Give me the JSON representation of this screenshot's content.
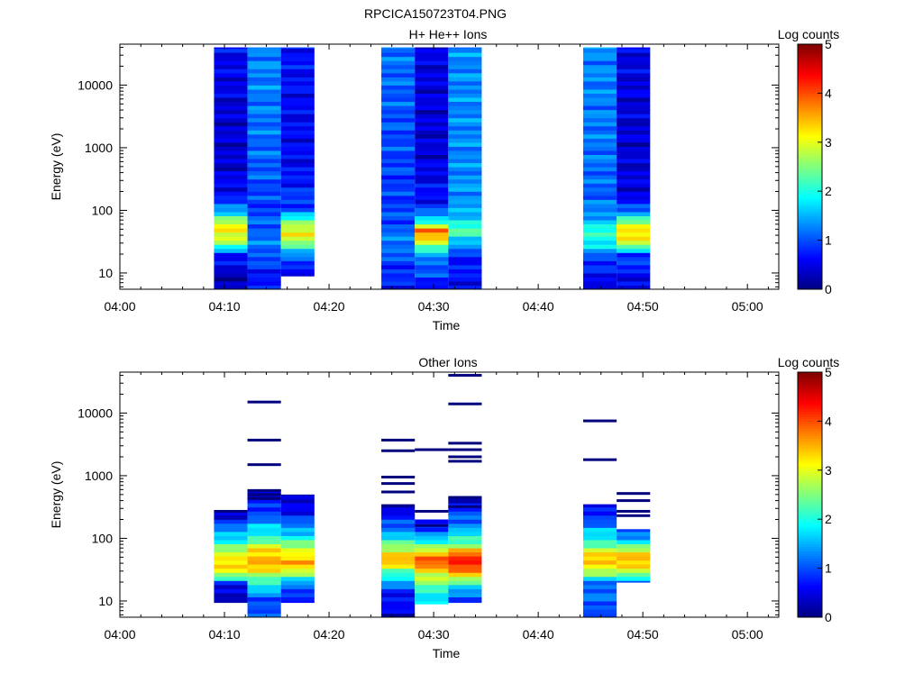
{
  "figure_title": "RPCICA150723T04.PNG",
  "colors": {
    "jet": [
      "#00007f",
      "#0000ff",
      "#007fff",
      "#00ffff",
      "#7fff7f",
      "#ffff00",
      "#ff7f00",
      "#ff0000",
      "#7f0000"
    ]
  },
  "chart_data": [
    {
      "type": "heatmap",
      "title": "H+ He++ Ions",
      "xlabel": "Time",
      "ylabel": "Energy (eV)",
      "x_ticks": [
        "04:00",
        "04:10",
        "04:20",
        "04:30",
        "04:40",
        "04:50",
        "05:00"
      ],
      "x_range_minutes": [
        0,
        63
      ],
      "y_scale": "log",
      "y_range": [
        5.5,
        45000
      ],
      "y_ticks": [
        "10",
        "100",
        "1000",
        "10000"
      ],
      "colorbar": {
        "label": "Log counts",
        "range": [
          0,
          5
        ],
        "ticks": [
          "0",
          "1",
          "2",
          "3",
          "4",
          "5"
        ]
      },
      "columns": [
        {
          "start": 9.0,
          "end": 12.2,
          "e_min": 5.5,
          "e_max": 40000,
          "profile": [
            [
              5.5,
              0.2
            ],
            [
              10,
              0.3
            ],
            [
              20,
              0.8
            ],
            [
              30,
              2.5
            ],
            [
              45,
              3.3
            ],
            [
              60,
              3.0
            ],
            [
              90,
              1.8
            ],
            [
              150,
              0.7
            ],
            [
              500,
              0.4
            ],
            [
              3000,
              0.4
            ],
            [
              40000,
              0.6
            ]
          ]
        },
        {
          "start": 12.2,
          "end": 15.4,
          "e_min": 5.5,
          "e_max": 40000,
          "profile": [
            [
              5.5,
              0.6
            ],
            [
              12,
              0.8
            ],
            [
              25,
              1.2
            ],
            [
              60,
              1.1
            ],
            [
              120,
              0.9
            ],
            [
              500,
              1.1
            ],
            [
              3000,
              1.2
            ],
            [
              40000,
              1.3
            ]
          ]
        },
        {
          "start": 15.4,
          "end": 18.6,
          "e_min": 9,
          "e_max": 40000,
          "profile": [
            [
              9,
              0.6
            ],
            [
              18,
              1.0
            ],
            [
              28,
              2.4
            ],
            [
              45,
              3.2
            ],
            [
              60,
              2.8
            ],
            [
              100,
              1.0
            ],
            [
              500,
              0.6
            ],
            [
              5000,
              0.6
            ],
            [
              40000,
              0.7
            ]
          ]
        },
        {
          "start": 25.0,
          "end": 28.2,
          "e_min": 5.5,
          "e_max": 40000,
          "profile": [
            [
              5.5,
              0.7
            ],
            [
              15,
              0.9
            ],
            [
              30,
              1.3
            ],
            [
              60,
              1.0
            ],
            [
              200,
              0.9
            ],
            [
              2000,
              1.0
            ],
            [
              40000,
              1.2
            ]
          ]
        },
        {
          "start": 28.2,
          "end": 31.4,
          "e_min": 5.5,
          "e_max": 40000,
          "profile": [
            [
              5.5,
              0.6
            ],
            [
              20,
              1.4
            ],
            [
              35,
              3.4
            ],
            [
              50,
              3.7
            ],
            [
              70,
              1.8
            ],
            [
              120,
              0.7
            ],
            [
              1000,
              0.4
            ],
            [
              40000,
              0.5
            ]
          ]
        },
        {
          "start": 31.4,
          "end": 34.6,
          "e_min": 5.5,
          "e_max": 40000,
          "profile": [
            [
              5.5,
              0.6
            ],
            [
              20,
              0.8
            ],
            [
              30,
              1.5
            ],
            [
              45,
              2.3
            ],
            [
              60,
              2.0
            ],
            [
              100,
              1.4
            ],
            [
              500,
              1.3
            ],
            [
              5000,
              1.3
            ],
            [
              40000,
              1.3
            ]
          ]
        },
        {
          "start": 44.3,
          "end": 47.5,
          "e_min": 5.5,
          "e_max": 40000,
          "profile": [
            [
              5.5,
              0.5
            ],
            [
              15,
              0.8
            ],
            [
              30,
              1.8
            ],
            [
              45,
              2.3
            ],
            [
              60,
              1.6
            ],
            [
              150,
              1.1
            ],
            [
              1000,
              1.2
            ],
            [
              40000,
              1.3
            ]
          ]
        },
        {
          "start": 47.5,
          "end": 50.7,
          "e_min": 5.5,
          "e_max": 40000,
          "profile": [
            [
              5.5,
              0.4
            ],
            [
              20,
              1.0
            ],
            [
              30,
              2.8
            ],
            [
              45,
              3.5
            ],
            [
              60,
              2.8
            ],
            [
              90,
              1.5
            ],
            [
              150,
              0.5
            ],
            [
              1000,
              0.4
            ],
            [
              40000,
              0.5
            ]
          ]
        }
      ]
    },
    {
      "type": "heatmap",
      "title": "Other Ions",
      "xlabel": "Time",
      "ylabel": "Energy (eV)",
      "x_ticks": [
        "04:00",
        "04:10",
        "04:20",
        "04:30",
        "04:40",
        "04:50",
        "05:00"
      ],
      "x_range_minutes": [
        0,
        63
      ],
      "y_scale": "log",
      "y_range": [
        5.5,
        45000
      ],
      "y_ticks": [
        "10",
        "100",
        "1000",
        "10000"
      ],
      "colorbar": {
        "label": "Log counts",
        "range": [
          0,
          5
        ],
        "ticks": [
          "0",
          "1",
          "2",
          "3",
          "4",
          "5"
        ]
      },
      "columns": [
        {
          "start": 9.0,
          "end": 12.2,
          "e_min": 9.5,
          "e_max": 270,
          "profile": [
            [
              9.5,
              0.2
            ],
            [
              18,
              0.5
            ],
            [
              25,
              2.5
            ],
            [
              40,
              3.5
            ],
            [
              60,
              2.8
            ],
            [
              100,
              1.8
            ],
            [
              180,
              0.9
            ],
            [
              270,
              0.3
            ]
          ]
        },
        {
          "start": 12.2,
          "end": 15.4,
          "e_min": 5.5,
          "e_max": 600,
          "profile": [
            [
              5.5,
              0.9
            ],
            [
              12,
              1.1
            ],
            [
              25,
              2.6
            ],
            [
              40,
              3.6
            ],
            [
              60,
              3.4
            ],
            [
              100,
              2.2
            ],
            [
              200,
              1.2
            ],
            [
              600,
              0.3
            ]
          ]
        },
        {
          "start": 15.4,
          "end": 18.6,
          "e_min": 9.5,
          "e_max": 500,
          "profile": [
            [
              9.5,
              0.8
            ],
            [
              18,
              1.0
            ],
            [
              28,
              2.8
            ],
            [
              45,
              3.6
            ],
            [
              60,
              3.1
            ],
            [
              100,
              2.0
            ],
            [
              200,
              0.9
            ],
            [
              500,
              0.2
            ]
          ]
        },
        {
          "start": 25.0,
          "end": 28.2,
          "e_min": 5.5,
          "e_max": 350,
          "profile": [
            [
              5.5,
              0.4
            ],
            [
              15,
              0.8
            ],
            [
              30,
              2.4
            ],
            [
              45,
              3.6
            ],
            [
              60,
              3.2
            ],
            [
              100,
              1.8
            ],
            [
              200,
              0.8
            ],
            [
              350,
              0.3
            ]
          ]
        },
        {
          "start": 28.2,
          "end": 31.4,
          "e_min": 9,
          "e_max": 200,
          "profile": [
            [
              9,
              1.5
            ],
            [
              25,
              2.8
            ],
            [
              40,
              4.0
            ],
            [
              60,
              3.4
            ],
            [
              100,
              1.5
            ],
            [
              200,
              0.5
            ]
          ]
        },
        {
          "start": 31.4,
          "end": 34.6,
          "e_min": 9.5,
          "e_max": 450,
          "profile": [
            [
              9.5,
              0.6
            ],
            [
              20,
              2.2
            ],
            [
              35,
              4.3
            ],
            [
              55,
              4.0
            ],
            [
              90,
              2.2
            ],
            [
              150,
              1.4
            ],
            [
              300,
              0.8
            ],
            [
              450,
              0.3
            ]
          ]
        },
        {
          "start": 44.3,
          "end": 47.5,
          "e_min": 5.5,
          "e_max": 350,
          "profile": [
            [
              5.5,
              1.0
            ],
            [
              20,
              1.2
            ],
            [
              30,
              2.8
            ],
            [
              45,
              3.6
            ],
            [
              60,
              3.0
            ],
            [
              100,
              1.9
            ],
            [
              200,
              1.0
            ],
            [
              350,
              0.4
            ]
          ]
        },
        {
          "start": 47.5,
          "end": 50.7,
          "e_min": 20,
          "e_max": 140,
          "profile": [
            [
              20,
              1.2
            ],
            [
              30,
              2.8
            ],
            [
              45,
              3.7
            ],
            [
              60,
              3.1
            ],
            [
              90,
              1.8
            ],
            [
              140,
              0.8
            ]
          ]
        }
      ],
      "sparse_lines": [
        {
          "t": 10.6,
          "e": 270
        },
        {
          "t": 13.8,
          "e": 15000
        },
        {
          "t": 13.8,
          "e": 3700
        },
        {
          "t": 13.8,
          "e": 1500
        },
        {
          "t": 13.8,
          "e": 580
        },
        {
          "t": 13.8,
          "e": 500
        },
        {
          "t": 13.8,
          "e": 430
        },
        {
          "t": 26.6,
          "e": 3700
        },
        {
          "t": 26.6,
          "e": 2500
        },
        {
          "t": 26.6,
          "e": 950
        },
        {
          "t": 26.6,
          "e": 750
        },
        {
          "t": 26.6,
          "e": 550
        },
        {
          "t": 29.8,
          "e": 2600
        },
        {
          "t": 29.8,
          "e": 270
        },
        {
          "t": 29.8,
          "e": 160
        },
        {
          "t": 33.0,
          "e": 40000
        },
        {
          "t": 33.0,
          "e": 14000
        },
        {
          "t": 33.0,
          "e": 3300
        },
        {
          "t": 33.0,
          "e": 2600
        },
        {
          "t": 33.0,
          "e": 2000
        },
        {
          "t": 33.0,
          "e": 1700
        },
        {
          "t": 33.0,
          "e": 450
        },
        {
          "t": 33.0,
          "e": 320
        },
        {
          "t": 45.9,
          "e": 7500
        },
        {
          "t": 45.9,
          "e": 1800
        },
        {
          "t": 49.1,
          "e": 520
        },
        {
          "t": 49.1,
          "e": 400
        },
        {
          "t": 49.1,
          "e": 270
        },
        {
          "t": 49.1,
          "e": 230
        }
      ]
    }
  ]
}
